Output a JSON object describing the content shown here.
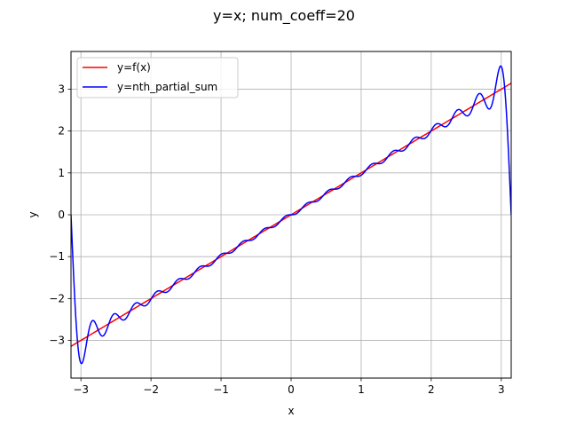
{
  "chart_data": {
    "type": "line",
    "title": "y=x; num_coeff=20",
    "xlabel": "x",
    "ylabel": "y",
    "xlim": [
      -3.14159,
      3.14159
    ],
    "ylim": [
      -3.9,
      3.9
    ],
    "xticks": [
      -3,
      -2,
      -1,
      0,
      1,
      2,
      3
    ],
    "yticks": [
      -3,
      -2,
      -1,
      0,
      1,
      2,
      3
    ],
    "xtick_labels": [
      "−3",
      "−2",
      "−1",
      "0",
      "1",
      "2",
      "3"
    ],
    "ytick_labels": [
      "−3",
      "−2",
      "−1",
      "0",
      "1",
      "2",
      "3"
    ],
    "grid": true,
    "legend_position": "top-left",
    "series": [
      {
        "name": "y=f(x)",
        "color": "#ff0000",
        "function": "x",
        "x_range": [
          -3.14159,
          3.14159
        ]
      },
      {
        "name": "y=nth_partial_sum",
        "color": "#0000ff",
        "function": "sum_{n=1}^{20} 2*(-1)^(n+1)*sin(n*x)/n",
        "x_range": [
          -3.14159,
          3.14159
        ]
      }
    ]
  }
}
